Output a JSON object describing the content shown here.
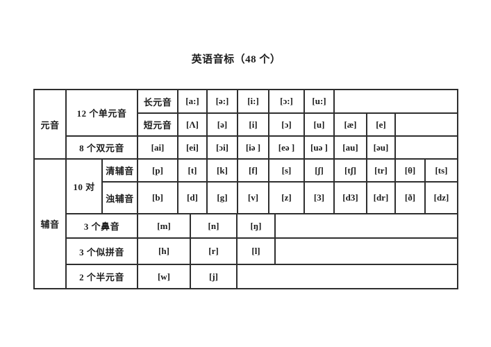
{
  "page": {
    "title": "英语音标（48 个）"
  },
  "table": {
    "vowel_header": "元音",
    "consonant_header": "辅音",
    "mono_label": "12 个单元音",
    "long_label": "长元音",
    "short_label": "短元音",
    "diphthong_label": "8 个双元音",
    "pairs_label": "10 对",
    "voiceless_label": "清辅音",
    "voiced_label": "浊辅音",
    "nasal_label": "3 个鼻音",
    "liquid_label": "3 个似拼音",
    "semivowel_label": "2 个半元音",
    "long_vowels": [
      "[a:]",
      "[ə:]",
      "[i:]",
      "[ɔ:]",
      "[u:]"
    ],
    "short_vowels": [
      "[Λ]",
      "[ə]",
      "[i]",
      "[ɔ]",
      "[u]",
      "[æ]",
      "[e]"
    ],
    "diphthongs": [
      "[ai]",
      "[ei]",
      "[ɔi]",
      "[iə ]",
      "[eə ]",
      "[uə ]",
      "[au]",
      "[əu]"
    ],
    "voiceless_consonants": [
      "[p]",
      "[t]",
      "[k]",
      "[f]",
      "[s]",
      "[ʃ]",
      "[tʃ]",
      "[tr]",
      "[θ]",
      "[ts]"
    ],
    "voiced_consonants": [
      "[b]",
      "[d]",
      "[g]",
      "[v]",
      "[z]",
      "[3]",
      "[d3]",
      "[dr]",
      "[ð]",
      "[dz]"
    ],
    "nasals": [
      "[m]",
      "[n]",
      "[ŋ]"
    ],
    "liquids": [
      "[h]",
      "[r]",
      "[l]"
    ],
    "semivowels": [
      "[w]",
      "[j]"
    ]
  }
}
